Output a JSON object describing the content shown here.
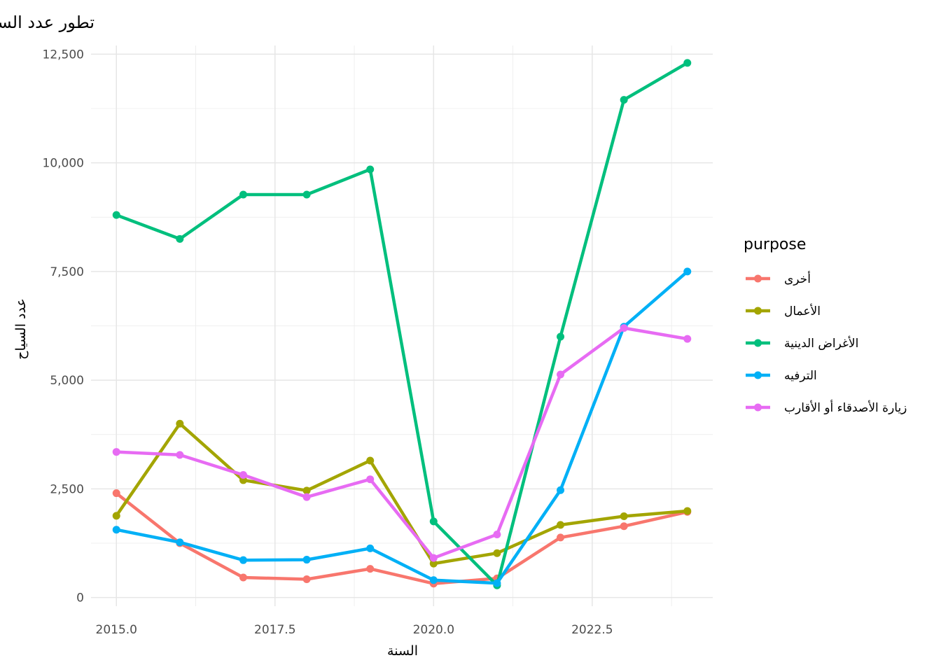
{
  "chart_data": {
    "type": "line",
    "title": "تطور عدد السياح حسب الغرض",
    "xlabel": "السنة",
    "ylabel": "عدد السياح",
    "x": [
      2015,
      2016,
      2017,
      2018,
      2019,
      2020,
      2021,
      2022,
      2023,
      2024
    ],
    "xlim": [
      2014.6,
      2024.4
    ],
    "ylim": [
      -200,
      12700
    ],
    "x_ticks": [
      2015.0,
      2017.5,
      2020.0,
      2022.5
    ],
    "x_tick_labels": [
      "2015.0",
      "2017.5",
      "2020.0",
      "2022.5"
    ],
    "y_ticks": [
      0,
      2500,
      5000,
      7500,
      10000,
      12500
    ],
    "y_tick_labels": [
      "0",
      "2,500",
      "5,000",
      "7,500",
      "10,000",
      "12,500"
    ],
    "grid": true,
    "legend": {
      "title": "purpose",
      "position": "right"
    },
    "series": [
      {
        "name": "أخرى",
        "color": "#F8766D",
        "values": [
          2400,
          1250,
          460,
          420,
          660,
          320,
          440,
          1380,
          1640,
          1970
        ]
      },
      {
        "name": "الأعمال",
        "color": "#A3A500",
        "values": [
          1880,
          4000,
          2700,
          2460,
          3150,
          780,
          1020,
          1670,
          1870,
          1990
        ]
      },
      {
        "name": "الأغراض الدينية",
        "color": "#00BF7D",
        "values": [
          8800,
          8250,
          9270,
          9270,
          9850,
          1750,
          280,
          6000,
          11450,
          12300
        ]
      },
      {
        "name": "الترفيه",
        "color": "#00B0F6",
        "values": [
          1560,
          1270,
          860,
          870,
          1130,
          400,
          330,
          2470,
          6230,
          7500
        ]
      },
      {
        "name": "زيارة الأصدقاء أو الأقارب",
        "color": "#E76BF3",
        "values": [
          3350,
          3280,
          2820,
          2310,
          2720,
          910,
          1450,
          5130,
          6200,
          5950
        ]
      }
    ]
  }
}
